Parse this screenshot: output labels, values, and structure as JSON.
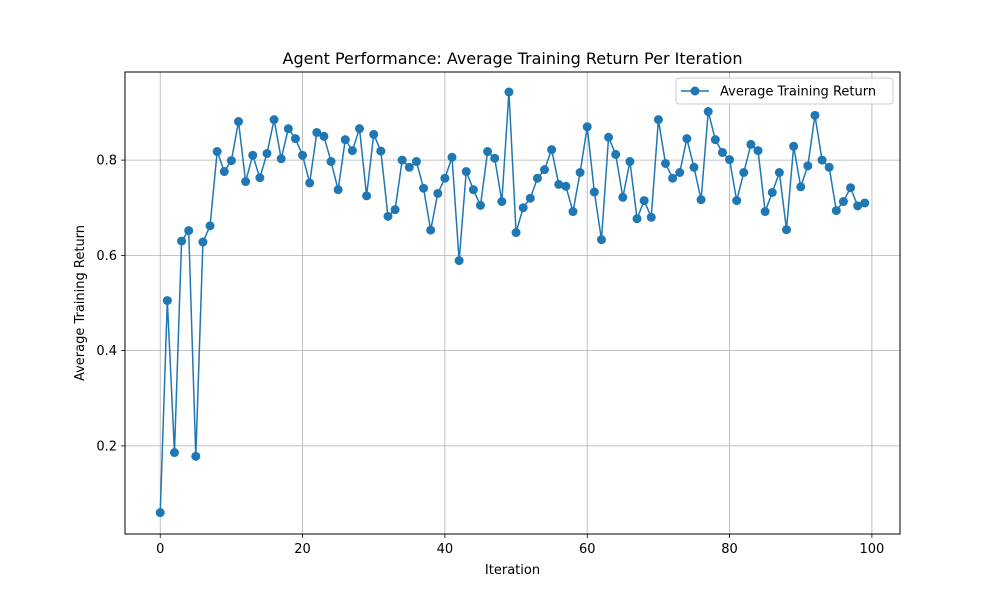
{
  "chart_data": {
    "type": "line",
    "title": "Agent Performance: Average Training Return Per Iteration",
    "xlabel": "Iteration",
    "ylabel": "Average Training Return",
    "xlim": [
      -4.95,
      103.95
    ],
    "ylim": [
      0.015,
      0.985
    ],
    "xticks": [
      0,
      20,
      40,
      60,
      80,
      100
    ],
    "yticks": [
      0.2,
      0.4,
      0.6,
      0.8
    ],
    "grid": true,
    "legend_position": "upper-right",
    "series": [
      {
        "name": "Average Training Return",
        "color": "#1f77b4",
        "marker": "circle",
        "x": [
          0,
          1,
          2,
          3,
          4,
          5,
          6,
          7,
          8,
          9,
          10,
          11,
          12,
          13,
          14,
          15,
          16,
          17,
          18,
          19,
          20,
          21,
          22,
          23,
          24,
          25,
          26,
          27,
          28,
          29,
          30,
          31,
          32,
          33,
          34,
          35,
          36,
          37,
          38,
          39,
          40,
          41,
          42,
          43,
          44,
          45,
          46,
          47,
          48,
          49,
          50,
          51,
          52,
          53,
          54,
          55,
          56,
          57,
          58,
          59,
          60,
          61,
          62,
          63,
          64,
          65,
          66,
          67,
          68,
          69,
          70,
          71,
          72,
          73,
          74,
          75,
          76,
          77,
          78,
          79,
          80,
          81,
          82,
          83,
          84,
          85,
          86,
          87,
          88,
          89,
          90,
          91,
          92,
          93,
          94,
          95,
          96,
          97,
          98,
          99
        ],
        "values": [
          0.06,
          0.505,
          0.186,
          0.63,
          0.652,
          0.178,
          0.628,
          0.662,
          0.818,
          0.776,
          0.799,
          0.881,
          0.755,
          0.81,
          0.763,
          0.814,
          0.885,
          0.803,
          0.866,
          0.845,
          0.81,
          0.752,
          0.858,
          0.85,
          0.797,
          0.738,
          0.843,
          0.82,
          0.866,
          0.725,
          0.854,
          0.819,
          0.682,
          0.696,
          0.8,
          0.785,
          0.797,
          0.741,
          0.653,
          0.73,
          0.762,
          0.806,
          0.589,
          0.776,
          0.738,
          0.705,
          0.818,
          0.804,
          0.713,
          0.943,
          0.648,
          0.7,
          0.72,
          0.762,
          0.78,
          0.822,
          0.749,
          0.745,
          0.692,
          0.774,
          0.87,
          0.733,
          0.633,
          0.848,
          0.812,
          0.722,
          0.797,
          0.677,
          0.715,
          0.68,
          0.885,
          0.793,
          0.762,
          0.774,
          0.845,
          0.785,
          0.717,
          0.902,
          0.843,
          0.816,
          0.801,
          0.715,
          0.774,
          0.833,
          0.82,
          0.692,
          0.732,
          0.774,
          0.654,
          0.829,
          0.744,
          0.788,
          0.894,
          0.8,
          0.785,
          0.694,
          0.713,
          0.742,
          0.704,
          0.71
        ]
      }
    ]
  }
}
